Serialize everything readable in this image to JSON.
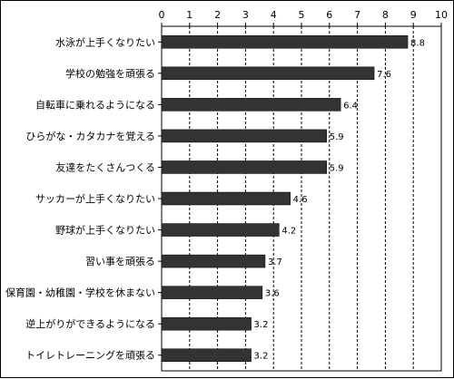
{
  "chart_data": {
    "type": "bar",
    "orientation": "horizontal",
    "categories": [
      "水泳が上手くなりたい",
      "学校の勉強を頑張る",
      "自転車に乗れるようになる",
      "ひらがな・カタカナを覚える",
      "友達をたくさんつくる",
      "サッカーが上手くなりたい",
      "野球が上手くなりたい",
      "習い事を頑張る",
      "保育園・幼稚園・学校を休まない",
      "逆上がりができるようになる",
      "トイレトレーニングを頑張る"
    ],
    "values": [
      8.8,
      7.6,
      6.4,
      5.9,
      5.9,
      4.6,
      4.2,
      3.7,
      3.6,
      3.2,
      3.2
    ],
    "data_labels": [
      "8.8",
      "7.6",
      "6.4",
      "5.9",
      "5.9",
      "4.6",
      "4.2",
      "3.7",
      "3.6",
      "3.2",
      "3.2"
    ],
    "xticks": [
      "0",
      "1",
      "2",
      "3",
      "4",
      "5",
      "6",
      "7",
      "8",
      "9",
      "10"
    ],
    "xlim": [
      0,
      10
    ],
    "grid": "vertical-dashed",
    "bar_color": "#333333",
    "title": "",
    "xlabel": "",
    "ylabel": ""
  }
}
